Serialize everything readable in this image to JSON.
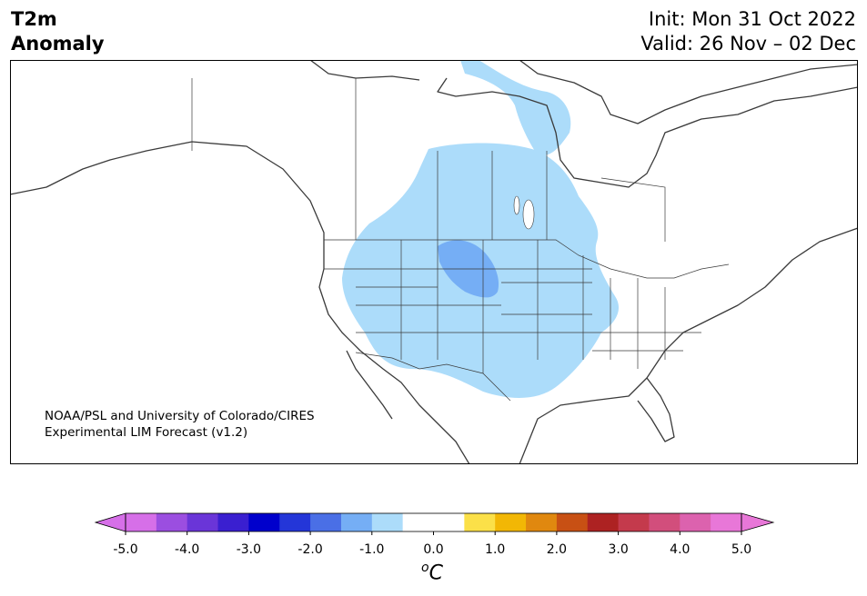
{
  "title": {
    "variable": "T2m",
    "field": "Anomaly",
    "init": "Init: Mon 31 Oct 2022",
    "valid": "Valid: 26 Nov – 02 Dec"
  },
  "credit": {
    "line1": "NOAA/PSL and University of Colorado/CIRES",
    "line2": "Experimental LIM Forecast (v1.2)"
  },
  "colorbar": {
    "unit_prefix": "o",
    "unit_main": "C",
    "ticks": [
      "-5.0",
      "-4.0",
      "-3.0",
      "-2.0",
      "-1.0",
      "0.0",
      "1.0",
      "2.0",
      "3.0",
      "4.0",
      "5.0"
    ],
    "colors": {
      "under": "#d66fe8",
      "over": "#e877d8",
      "bins": [
        "#d66fe8",
        "#9b4ee0",
        "#6a35d8",
        "#3a1fd0",
        "#0000cc",
        "#2436d8",
        "#4a6fe6",
        "#75aef5",
        "#acdcfa",
        "#ffffff",
        "#ffffff",
        "#fbe048",
        "#f2b705",
        "#e0880f",
        "#c85014",
        "#ad2222",
        "#c43a4c",
        "#d24e7c",
        "#dc62ae",
        "#e877d8"
      ]
    }
  },
  "map": {
    "region": "North America",
    "anomaly_colors": {
      "light_cold": "#acdcfa",
      "medium_cold": "#75aef5"
    },
    "anomaly_areas": [
      {
        "name": "western-central-us",
        "level_c": "-0.5 to -1.0"
      },
      {
        "name": "hudson-bay-extension",
        "level_c": "-0.5 to -1.0"
      },
      {
        "name": "northern-plains-core",
        "level_c": "-1.0 to -1.5"
      }
    ]
  }
}
